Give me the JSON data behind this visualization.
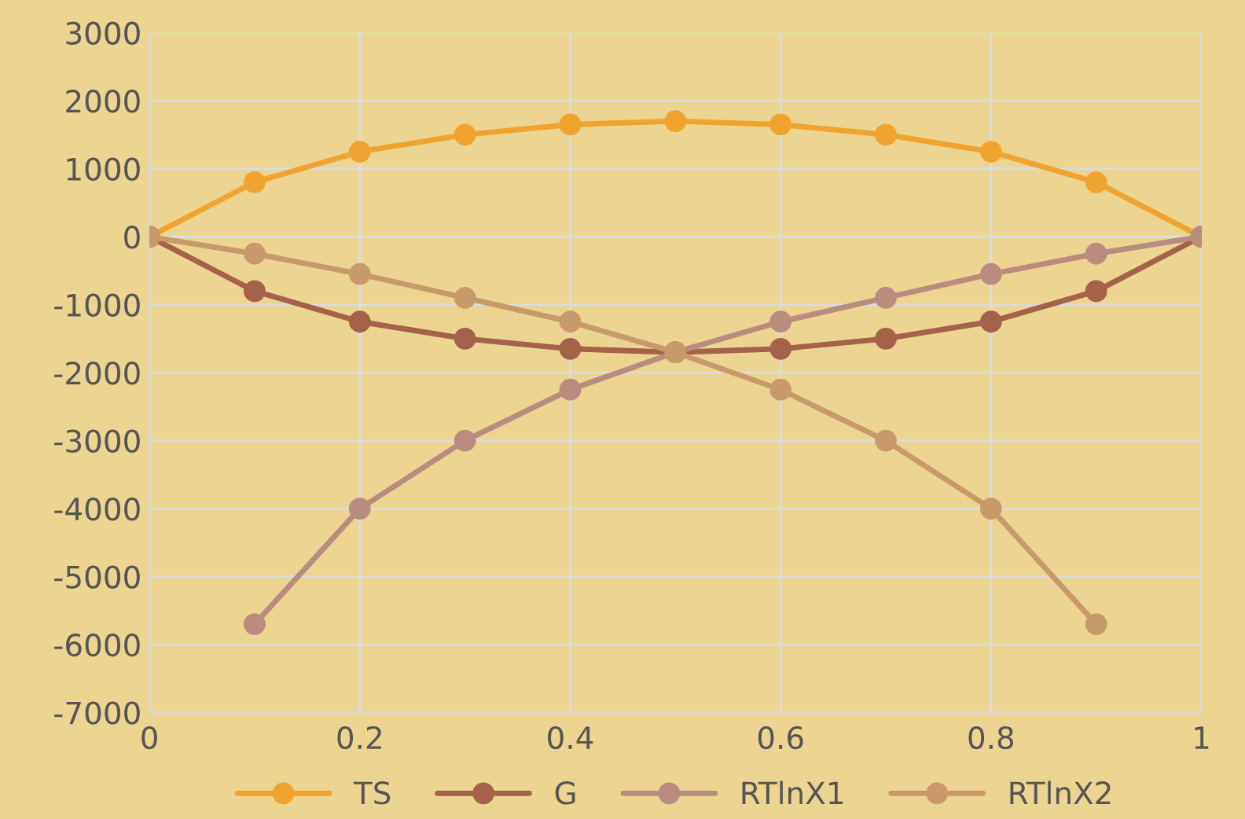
{
  "chart_data": {
    "type": "line",
    "x": [
      0,
      0.1,
      0.2,
      0.3,
      0.4,
      0.5,
      0.6,
      0.7,
      0.8,
      0.9,
      1
    ],
    "series": [
      {
        "name": "TS",
        "color": "#f0a430",
        "values": [
          0,
          800,
          1250,
          1500,
          1650,
          1700,
          1650,
          1500,
          1250,
          800,
          0
        ]
      },
      {
        "name": "G",
        "color": "#a5614a",
        "values": [
          0,
          -800,
          -1250,
          -1500,
          -1650,
          -1700,
          -1650,
          -1500,
          -1250,
          -800,
          0
        ]
      },
      {
        "name": "RTlnX1",
        "color": "#b88d80",
        "values": [
          null,
          -5700,
          -4000,
          -3000,
          -2250,
          -1700,
          -1250,
          -900,
          -550,
          -250,
          0
        ]
      },
      {
        "name": "RTlnX2",
        "color": "#c89a6a",
        "values": [
          0,
          -250,
          -550,
          -900,
          -1250,
          -1700,
          -2250,
          -3000,
          -4000,
          -5700,
          null
        ]
      }
    ],
    "xlim": [
      0,
      1
    ],
    "xticks": [
      0,
      0.2,
      0.4,
      0.6,
      0.8,
      1
    ],
    "ylim": [
      -7000,
      3000
    ],
    "yticks": [
      -7000,
      -6000,
      -5000,
      -4000,
      -3000,
      -2000,
      -1000,
      0,
      1000,
      2000,
      3000
    ],
    "grid": true,
    "legend": "bottom",
    "marker": "circle",
    "line_style": "solid"
  }
}
